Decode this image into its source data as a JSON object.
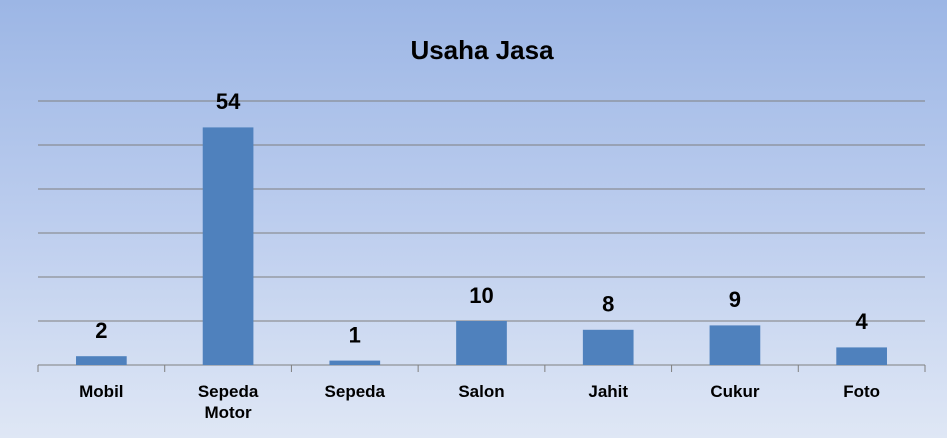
{
  "chart_data": {
    "type": "bar",
    "title": "Usaha Jasa",
    "categories": [
      "Mobil",
      "Sepeda Motor",
      "Sepeda",
      "Salon",
      "Jahit",
      "Cukur",
      "Foto"
    ],
    "values": [
      2,
      54,
      1,
      10,
      8,
      9,
      4
    ],
    "color": "#4f81bd",
    "ylim": [
      0,
      60
    ],
    "yticks": [
      0,
      10,
      20,
      30,
      40,
      50,
      60
    ],
    "grid": true
  }
}
